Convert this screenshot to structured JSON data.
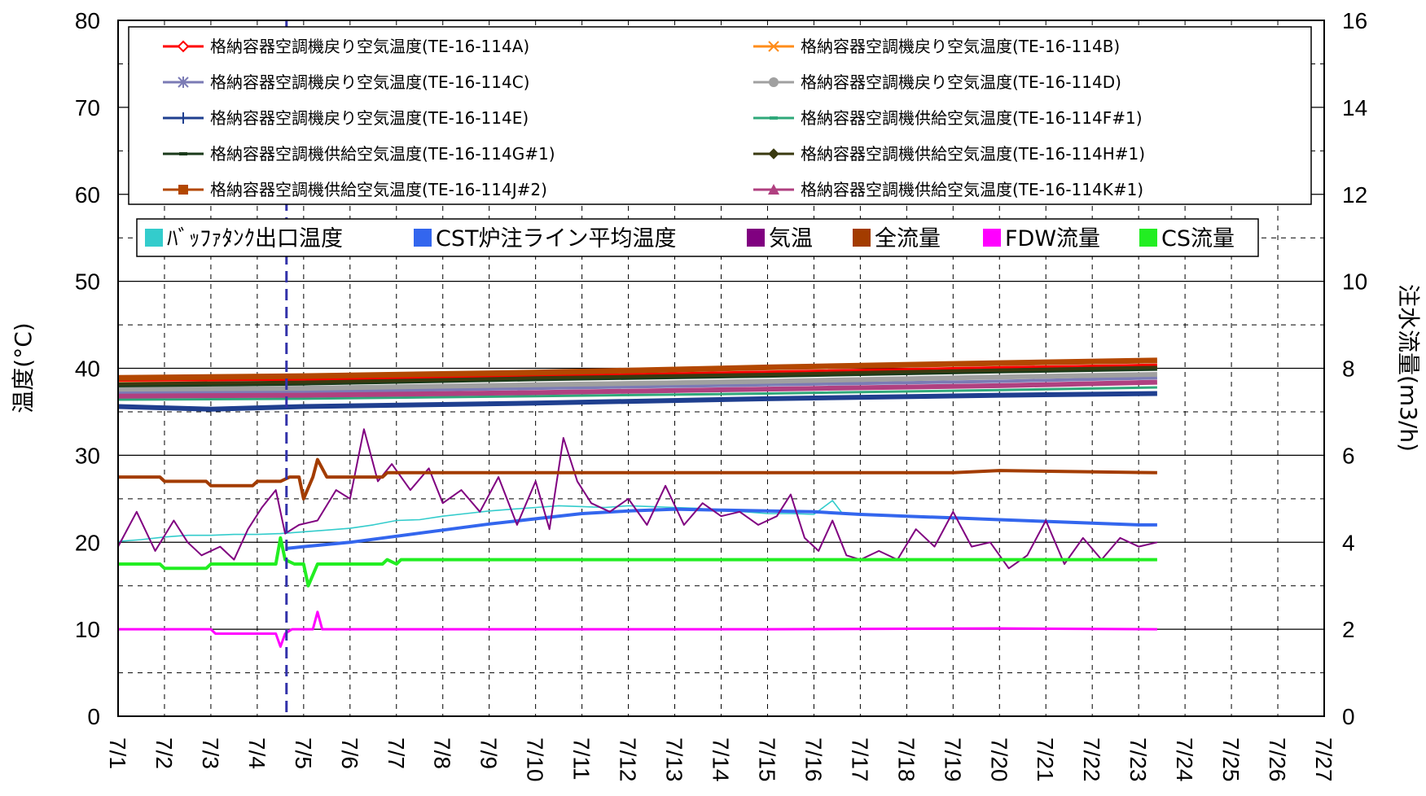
{
  "chart_data": {
    "type": "line",
    "title": "",
    "x_tick_labels": [
      "7/1",
      "7/2",
      "7/3",
      "7/4",
      "7/5",
      "7/6",
      "7/7",
      "7/8",
      "7/9",
      "7/10",
      "7/11",
      "7/12",
      "7/13",
      "7/14",
      "7/15",
      "7/16",
      "7/17",
      "7/18",
      "7/19",
      "7/20",
      "7/21",
      "7/22",
      "7/23",
      "7/24",
      "7/25",
      "7/26",
      "7/27"
    ],
    "x_range_days": [
      1,
      27
    ],
    "y_left": {
      "label": "温度(°C)",
      "range": [
        0,
        80
      ],
      "ticks": [
        0,
        10,
        20,
        30,
        40,
        50,
        60,
        70,
        80
      ]
    },
    "y_right": {
      "label": "注水流量(m3/h)",
      "range": [
        0,
        16
      ],
      "ticks": [
        0,
        2,
        4,
        6,
        8,
        10,
        12,
        14,
        16
      ]
    },
    "grid": "major solid, minor dashed",
    "vertical_marker": {
      "x_day": 4.63,
      "color": "#3333aa",
      "style": "dashed"
    },
    "legend_top": [
      {
        "name": "格納容器空調機戻り空気温度(TE-16-114A)",
        "color": "#ff0000",
        "marker": "diamond-open"
      },
      {
        "name": "格納容器空調機戻り空気温度(TE-16-114B)",
        "color": "#ff8c1a",
        "marker": "x"
      },
      {
        "name": "格納容器空調機戻り空気温度(TE-16-114C)",
        "color": "#7b7bb5",
        "marker": "star"
      },
      {
        "name": "格納容器空調機戻り空気温度(TE-16-114D)",
        "color": "#a0a0a0",
        "marker": "circle"
      },
      {
        "name": "格納容器空調機戻り空気温度(TE-16-114E)",
        "color": "#1f3f8f",
        "marker": "plus"
      },
      {
        "name": "格納容器空調機供給空気温度(TE-16-114F#1)",
        "color": "#2fa87a",
        "marker": "dash"
      },
      {
        "name": "格納容器空調機供給空気温度(TE-16-114G#1)",
        "color": "#1a3a1a",
        "marker": "dash"
      },
      {
        "name": "格納容器空調機供給空気温度(TE-16-114H#1)",
        "color": "#3a3a10",
        "marker": "diamond"
      },
      {
        "name": "格納容器空調機供給空気温度(TE-16-114J#2)",
        "color": "#b34700",
        "marker": "square"
      },
      {
        "name": "格納容器空調機供給空気温度(TE-16-114K#1)",
        "color": "#b04080",
        "marker": "triangle"
      }
    ],
    "legend_bottom": [
      {
        "name": "ﾊﾞｯﾌｧﾀﾝｸ出口温度",
        "color": "#33cccc"
      },
      {
        "name": "CST炉注ライン平均温度",
        "color": "#3366ee"
      },
      {
        "name": "気温",
        "color": "#800080"
      },
      {
        "name": "全流量",
        "color": "#a33c00"
      },
      {
        "name": "FDW流量",
        "color": "#ff00ff"
      },
      {
        "name": "CS流量",
        "color": "#22ee22"
      }
    ],
    "series": [
      {
        "name": "格納容器空調機戻り空気温度(TE-16-114A)",
        "axis": "left",
        "color": "#ff0000",
        "width": 3,
        "x": [
          1,
          5,
          10,
          15,
          20,
          23.4
        ],
        "y": [
          38.6,
          38.7,
          39.1,
          39.6,
          40.1,
          40.4
        ]
      },
      {
        "name": "格納容器空調機戻り空気温度(TE-16-114B)",
        "axis": "left",
        "color": "#ff8c1a",
        "width": 3,
        "x": [
          1,
          5,
          10,
          15,
          20,
          23.4
        ],
        "y": [
          38.3,
          38.4,
          38.8,
          39.3,
          39.8,
          40.1
        ]
      },
      {
        "name": "格納容器空調機戻り空気温度(TE-16-114C)",
        "axis": "left",
        "color": "#7b7bb5",
        "width": 4,
        "x": [
          1,
          5,
          10,
          15,
          20,
          23.4
        ],
        "y": [
          37.2,
          37.3,
          37.7,
          38.1,
          38.5,
          38.9
        ]
      },
      {
        "name": "格納容器空調機戻り空気温度(TE-16-114D)",
        "axis": "left",
        "color": "#a0a0a0",
        "width": 6,
        "x": [
          1,
          5,
          10,
          15,
          20,
          23.4
        ],
        "y": [
          37.6,
          37.7,
          38.1,
          38.5,
          39.0,
          39.3
        ]
      },
      {
        "name": "格納容器空調機戻り空気温度(TE-16-114E)",
        "axis": "left",
        "color": "#1f3f8f",
        "width": 6,
        "x": [
          1,
          3,
          5,
          10,
          15,
          20,
          23.4
        ],
        "y": [
          35.6,
          35.3,
          35.6,
          36.0,
          36.5,
          36.9,
          37.1
        ]
      },
      {
        "name": "格納容器空調機供給空気温度(TE-16-114F#1)",
        "axis": "left",
        "color": "#2fa87a",
        "width": 3,
        "x": [
          1,
          5,
          10,
          15,
          20,
          23.4
        ],
        "y": [
          36.4,
          36.5,
          36.8,
          37.1,
          37.5,
          37.8
        ]
      },
      {
        "name": "格納容器空調機供給空気温度(TE-16-114G#1)",
        "axis": "left",
        "color": "#1a3a1a",
        "width": 4,
        "x": [
          1,
          5,
          10,
          15,
          20,
          23.4
        ],
        "y": [
          38.0,
          38.2,
          38.7,
          39.1,
          39.6,
          39.9
        ]
      },
      {
        "name": "格納容器空調機供給空気温度(TE-16-114H#1)",
        "axis": "left",
        "color": "#3a3a10",
        "width": 4,
        "x": [
          1,
          5,
          10,
          15,
          20,
          23.4
        ],
        "y": [
          38.2,
          38.4,
          38.9,
          39.3,
          39.8,
          40.1
        ]
      },
      {
        "name": "格納容器空調機供給空気温度(TE-16-114J#2)",
        "axis": "left",
        "color": "#b34700",
        "width": 7,
        "x": [
          1,
          5,
          10,
          15,
          20,
          23.4
        ],
        "y": [
          38.9,
          39.1,
          39.5,
          40.1,
          40.6,
          40.9
        ]
      },
      {
        "name": "格納容器空調機供給空気温度(TE-16-114K#1)",
        "axis": "left",
        "color": "#b04080",
        "width": 6,
        "x": [
          1,
          5,
          10,
          15,
          20,
          23.4
        ],
        "y": [
          36.8,
          36.9,
          37.2,
          37.6,
          38.0,
          38.4
        ]
      },
      {
        "name": "ﾊﾞｯﾌｧﾀﾝｸ出口温度",
        "axis": "left",
        "color": "#33cccc",
        "width": 1.6,
        "x": [
          1,
          1.5,
          2,
          2.5,
          3,
          3.5,
          4,
          4.5,
          5,
          5.5,
          6,
          6.5,
          7,
          7.5,
          8,
          8.5,
          9,
          9.5,
          10,
          10.5,
          11,
          11.5,
          12,
          12.5,
          13,
          13.5,
          14,
          14.5,
          15,
          15.5,
          16,
          16.4,
          16.6
        ],
        "y": [
          20.1,
          20.3,
          20.6,
          20.8,
          20.8,
          20.9,
          20.9,
          21.0,
          21.2,
          21.4,
          21.6,
          22.0,
          22.5,
          22.6,
          23.0,
          23.3,
          23.6,
          23.8,
          24.0,
          24.2,
          24.1,
          24.0,
          24.2,
          24.1,
          24.0,
          23.9,
          23.6,
          23.5,
          23.3,
          23.3,
          23.2,
          24.8,
          23.4
        ]
      },
      {
        "name": "CST炉注ライン平均温度",
        "axis": "left",
        "color": "#3366ee",
        "width": 4,
        "x": [
          4.65,
          5,
          6,
          7,
          8,
          9,
          10,
          11,
          12,
          13,
          14,
          15,
          16,
          17,
          18,
          19,
          20,
          21,
          22,
          23,
          23.4
        ],
        "y": [
          19.3,
          19.5,
          20.0,
          20.7,
          21.4,
          22.1,
          22.7,
          23.3,
          23.6,
          23.8,
          23.7,
          23.6,
          23.5,
          23.2,
          23.0,
          22.8,
          22.6,
          22.4,
          22.2,
          22.0,
          22.0
        ]
      },
      {
        "name": "気温",
        "axis": "left",
        "color": "#800080",
        "width": 2,
        "x": [
          1,
          1.4,
          1.8,
          2.2,
          2.5,
          2.8,
          3.2,
          3.5,
          3.8,
          4.1,
          4.4,
          4.6,
          4.9,
          5.3,
          5.7,
          6.0,
          6.3,
          6.6,
          6.9,
          7.3,
          7.7,
          8.0,
          8.4,
          8.8,
          9.2,
          9.6,
          10.0,
          10.3,
          10.6,
          10.9,
          11.2,
          11.6,
          12.0,
          12.4,
          12.8,
          13.2,
          13.6,
          14.0,
          14.4,
          14.8,
          15.2,
          15.5,
          15.8,
          16.1,
          16.4,
          16.7,
          17.0,
          17.4,
          17.8,
          18.2,
          18.6,
          19.0,
          19.4,
          19.8,
          20.2,
          20.6,
          21.0,
          21.4,
          21.8,
          22.2,
          22.6,
          23.0,
          23.4
        ],
        "y": [
          19.5,
          23.5,
          19.0,
          22.5,
          20.0,
          18.5,
          19.5,
          18.0,
          21.5,
          24.0,
          26.0,
          21.0,
          22.0,
          22.5,
          26.0,
          25.0,
          33.0,
          27.0,
          29.0,
          26.0,
          28.5,
          24.5,
          26.0,
          23.5,
          27.5,
          22.0,
          27.0,
          21.5,
          32.0,
          27.0,
          24.5,
          23.5,
          25.0,
          22.0,
          26.5,
          22.0,
          24.5,
          23.0,
          23.5,
          22.0,
          23.0,
          25.5,
          20.5,
          19.0,
          22.5,
          18.5,
          18.0,
          19.0,
          18.0,
          21.5,
          19.5,
          23.5,
          19.5,
          20.0,
          17.0,
          18.5,
          22.5,
          17.5,
          20.5,
          18.0,
          20.5,
          19.5,
          20.0
        ]
      },
      {
        "name": "全流量",
        "axis": "right",
        "color": "#a33c00",
        "width": 4,
        "x": [
          1,
          1.9,
          2.0,
          2.9,
          3.0,
          3.9,
          4.0,
          4.5,
          4.7,
          4.9,
          5.0,
          5.2,
          5.3,
          5.5,
          6.0,
          6.7,
          6.8,
          10,
          15,
          17,
          19,
          20,
          23.4
        ],
        "y": [
          5.5,
          5.5,
          5.4,
          5.4,
          5.3,
          5.3,
          5.4,
          5.4,
          5.5,
          5.5,
          5.0,
          5.5,
          5.9,
          5.5,
          5.5,
          5.5,
          5.6,
          5.6,
          5.6,
          5.6,
          5.6,
          5.65,
          5.6
        ]
      },
      {
        "name": "FDW流量",
        "axis": "right",
        "color": "#ff00ff",
        "width": 3,
        "x": [
          1,
          3.0,
          3.1,
          4.4,
          4.5,
          4.6,
          4.75,
          5.0,
          5.2,
          5.3,
          5.4,
          5.5,
          10,
          15,
          20,
          23.4
        ],
        "y": [
          2.0,
          2.0,
          1.9,
          1.9,
          1.6,
          1.9,
          2.0,
          2.0,
          2.0,
          2.4,
          2.0,
          2.0,
          2.0,
          2.0,
          2.02,
          2.0
        ]
      },
      {
        "name": "CS流量",
        "axis": "right",
        "color": "#22ee22",
        "width": 4,
        "x": [
          1,
          1.9,
          2.0,
          2.9,
          3.0,
          4.4,
          4.5,
          4.6,
          4.8,
          5.0,
          5.1,
          5.3,
          6.0,
          6.7,
          6.8,
          7.0,
          7.1,
          10,
          15,
          20,
          23.4
        ],
        "y": [
          3.5,
          3.5,
          3.4,
          3.4,
          3.5,
          3.5,
          4.1,
          3.6,
          3.5,
          3.5,
          3.0,
          3.5,
          3.5,
          3.5,
          3.6,
          3.5,
          3.6,
          3.6,
          3.6,
          3.6,
          3.6
        ]
      }
    ]
  }
}
